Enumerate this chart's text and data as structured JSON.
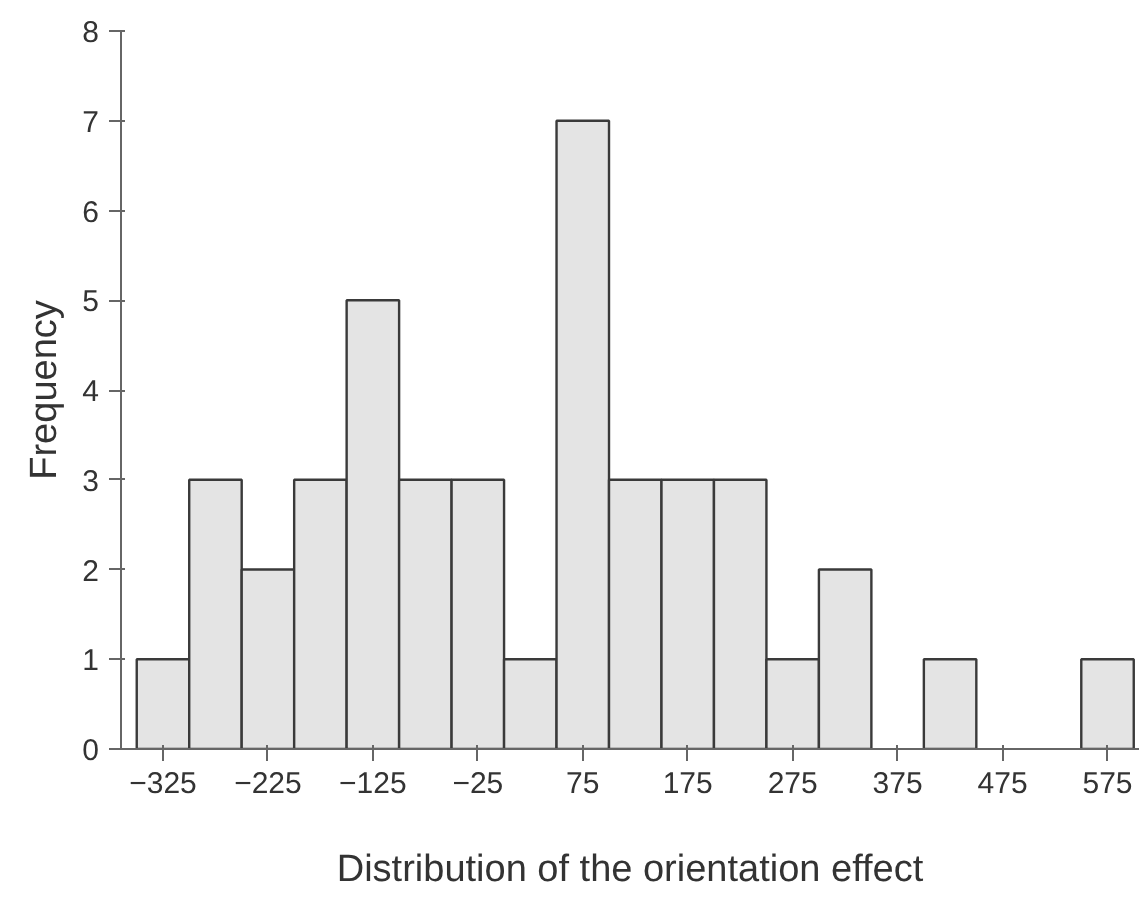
{
  "chart_data": {
    "type": "histogram",
    "xlabel": "Distribution of the orientation effect",
    "ylabel": "Frequency",
    "bins": [
      -350,
      -300,
      -250,
      -200,
      -150,
      -100,
      -50,
      0,
      50,
      100,
      150,
      200,
      250,
      300,
      350,
      400,
      450,
      500,
      550,
      600
    ],
    "values": [
      1,
      3,
      2,
      3,
      5,
      3,
      3,
      1,
      7,
      3,
      3,
      3,
      1,
      2,
      0,
      1,
      0,
      0,
      1
    ],
    "color": "#e4e4e4",
    "xlim": [
      -365,
      605
    ],
    "xticks": [
      -325,
      -225,
      -125,
      -25,
      75,
      175,
      275,
      375,
      475,
      575
    ],
    "ylim": [
      0,
      8
    ],
    "yticks": [
      0,
      1,
      2,
      3,
      4,
      5,
      6,
      7,
      8
    ],
    "grid": false
  }
}
